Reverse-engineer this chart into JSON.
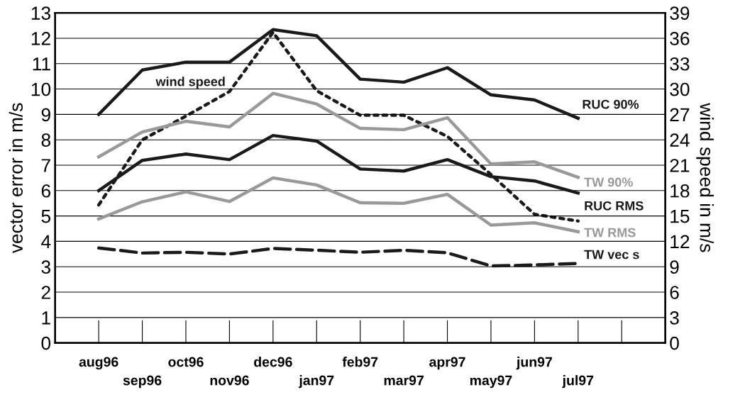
{
  "chart_data": {
    "type": "line",
    "categories": [
      "aug96",
      "sep96",
      "oct96",
      "nov96",
      "dec96",
      "jan97",
      "feb97",
      "mar97",
      "apr97",
      "may97",
      "jun97",
      "jul97",
      null
    ],
    "series": [
      {
        "name": "RUC 90%",
        "color": "#1a1a1a",
        "line_style": "solid",
        "values": [
          9.0,
          10.75,
          11.06,
          11.06,
          12.34,
          12.1,
          10.39,
          10.27,
          10.84,
          9.77,
          9.57,
          8.85,
          null
        ]
      },
      {
        "name": "TW 90%",
        "color": "#999999",
        "line_style": "solid",
        "values": [
          7.33,
          8.31,
          8.73,
          8.51,
          9.83,
          9.41,
          8.45,
          8.4,
          8.87,
          7.05,
          7.13,
          6.52,
          null
        ]
      },
      {
        "name": "RUC RMS",
        "color": "#1a1a1a",
        "line_style": "solid",
        "values": [
          6.0,
          7.19,
          7.44,
          7.22,
          8.17,
          7.95,
          6.85,
          6.77,
          7.22,
          6.55,
          6.38,
          5.9,
          null
        ]
      },
      {
        "name": "TW RMS",
        "color": "#999999",
        "line_style": "solid",
        "values": [
          4.88,
          5.56,
          5.95,
          5.57,
          6.5,
          6.22,
          5.52,
          5.5,
          5.85,
          4.64,
          4.73,
          4.38,
          null
        ]
      },
      {
        "name": "TW vec s",
        "color": "#1a1a1a",
        "line_style": "dashed",
        "values": [
          3.74,
          3.54,
          3.57,
          3.5,
          3.72,
          3.65,
          3.57,
          3.65,
          3.55,
          3.03,
          3.07,
          3.13,
          null
        ]
      },
      {
        "name": "wind speed",
        "color": "#1a1a1a",
        "line_style": "dotted",
        "axis": "y2",
        "values": [
          16.3,
          24.0,
          26.8,
          29.7,
          36.7,
          29.8,
          26.9,
          26.9,
          24.4,
          19.9,
          15.2,
          14.4,
          null
        ]
      }
    ],
    "ylabel": "vector error in m/s",
    "y2label": "wind speed in m/s",
    "ylim": [
      0,
      13
    ],
    "yticks": [
      0,
      1,
      2,
      3,
      4,
      5,
      6,
      7,
      8,
      9,
      10,
      11,
      12,
      13
    ],
    "y2lim": [
      0,
      39
    ],
    "y2ticks": [
      0,
      3,
      6,
      9,
      12,
      15,
      18,
      21,
      24,
      27,
      30,
      33,
      36,
      39
    ],
    "grid": "y",
    "legend": false,
    "marker": "none"
  }
}
